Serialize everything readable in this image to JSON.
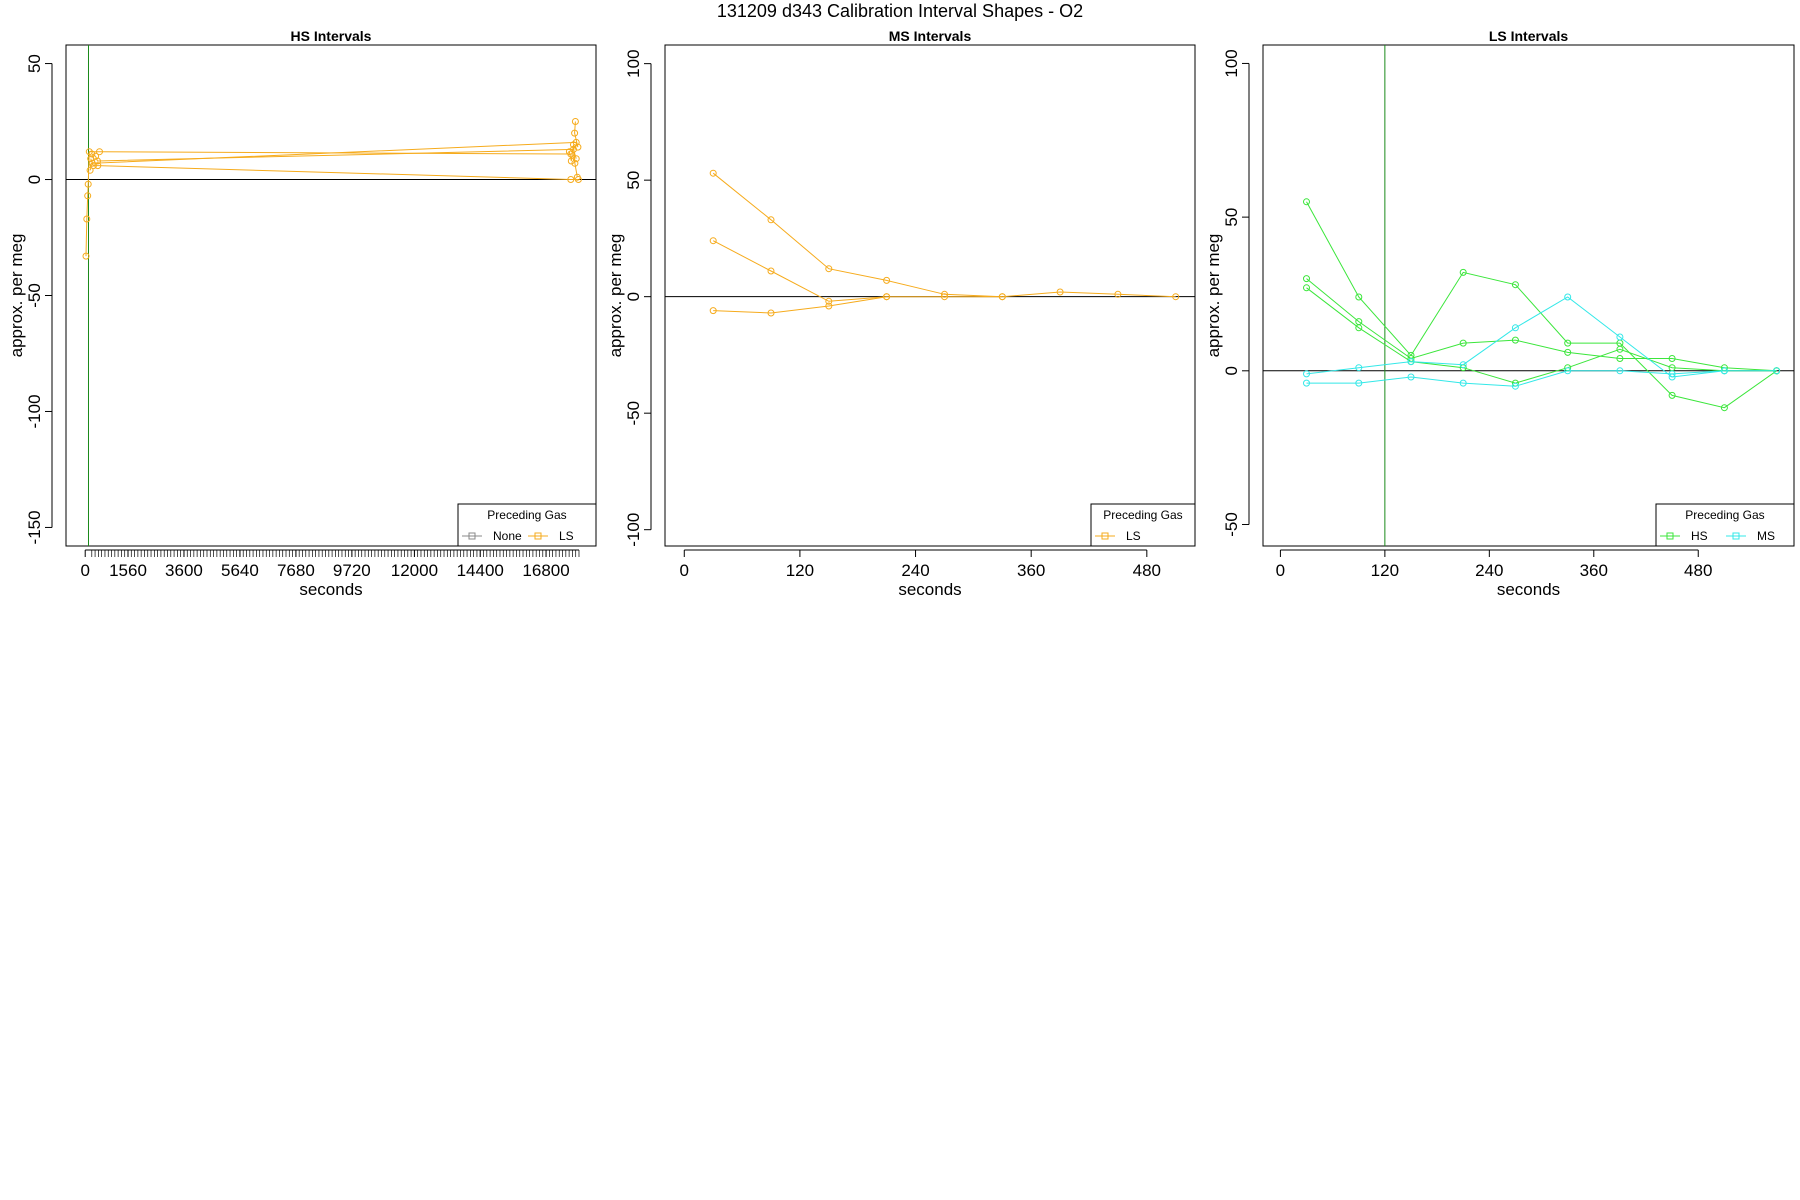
{
  "figure": {
    "title": "131209   d343   Calibration Interval Shapes - O2"
  },
  "chart_data": [
    {
      "type": "line",
      "title": "HS Intervals",
      "xlabel": "seconds",
      "ylabel": "approx. per meg",
      "xlim": [
        -700,
        18620
      ],
      "ylim": [
        -158,
        58
      ],
      "x_ticks": [
        0,
        1560,
        3600,
        5640,
        7680,
        9720,
        12000,
        14400,
        16800
      ],
      "y_ticks": [
        50,
        0,
        -50,
        -100,
        -150
      ],
      "minor_tick_spacing": 120,
      "minor_tick_range": [
        240,
        18000
      ],
      "vline": 120,
      "hline": 0,
      "legend": {
        "title": "Preceding Gas",
        "position": "bottom-right",
        "entries": [
          {
            "name": "None",
            "color": "#888888"
          },
          {
            "name": "LS",
            "color": "#f6ab1c"
          }
        ]
      },
      "series": [
        {
          "name": "LS",
          "color": "#f6ab1c",
          "points": [
            [
              30,
              -33
            ],
            [
              60,
              -17
            ],
            [
              90,
              -7
            ],
            [
              110,
              -2
            ],
            [
              150,
              12
            ],
            [
              520,
              12
            ],
            [
              17700,
              11
            ]
          ]
        },
        {
          "name": "LS",
          "color": "#f6ab1c",
          "points": [
            [
              200,
              9
            ],
            [
              300,
              6
            ],
            [
              460,
              6
            ],
            [
              17700,
              0
            ],
            [
              17980,
              0
            ]
          ]
        },
        {
          "name": "LS",
          "color": "#f6ab1c",
          "points": [
            [
              240,
              11
            ],
            [
              380,
              10
            ],
            [
              450,
              8
            ],
            [
              17800,
              13
            ],
            [
              17900,
              9
            ]
          ]
        },
        {
          "name": "LS",
          "color": "#f6ab1c",
          "points": [
            [
              180,
              4
            ],
            [
              260,
              7
            ],
            [
              17900,
              16
            ],
            [
              17960,
              14
            ],
            [
              17840,
              20
            ],
            [
              17870,
              25
            ]
          ]
        },
        {
          "name": "LS",
          "color": "#f6ab1c",
          "points": [
            [
              17650,
              12
            ],
            [
              17720,
              8
            ],
            [
              17800,
              15
            ],
            [
              17850,
              7
            ],
            [
              17940,
              1
            ]
          ]
        }
      ]
    },
    {
      "type": "line",
      "title": "MS Intervals",
      "xlabel": "seconds",
      "ylabel": "approx. per meg",
      "xlim": [
        -20,
        530
      ],
      "ylim": [
        -107,
        108
      ],
      "x_ticks": [
        0,
        120,
        240,
        360,
        480
      ],
      "y_ticks": [
        100,
        50,
        0,
        -50,
        -100
      ],
      "hline": 0,
      "legend": {
        "title": "Preceding Gas",
        "position": "bottom-right",
        "entries": [
          {
            "name": "LS",
            "color": "#f6ab1c"
          }
        ]
      },
      "series": [
        {
          "name": "LS",
          "color": "#f6ab1c",
          "points": [
            [
              30,
              53
            ],
            [
              90,
              33
            ],
            [
              150,
              12
            ],
            [
              210,
              7
            ],
            [
              270,
              1
            ],
            [
              330,
              0
            ],
            [
              390,
              2
            ],
            [
              450,
              1
            ],
            [
              510,
              0
            ]
          ]
        },
        {
          "name": "LS",
          "color": "#f6ab1c",
          "points": [
            [
              30,
              24
            ],
            [
              90,
              11
            ],
            [
              150,
              -2
            ],
            [
              210,
              0
            ],
            [
              270,
              0
            ],
            [
              330,
              0
            ]
          ]
        },
        {
          "name": "LS",
          "color": "#f6ab1c",
          "points": [
            [
              30,
              -6
            ],
            [
              90,
              -7
            ],
            [
              150,
              -4
            ],
            [
              210,
              0
            ]
          ]
        }
      ]
    },
    {
      "type": "line",
      "title": "LS Intervals",
      "xlabel": "seconds",
      "ylabel": "approx. per meg",
      "xlim": [
        -20,
        590
      ],
      "ylim": [
        -57,
        106
      ],
      "x_ticks": [
        0,
        120,
        240,
        360,
        480
      ],
      "y_ticks": [
        100,
        50,
        0,
        -50
      ],
      "vline": 120,
      "hline": 0,
      "legend": {
        "title": "Preceding Gas",
        "position": "bottom-right",
        "entries": [
          {
            "name": "HS",
            "color": "#3be63b"
          },
          {
            "name": "MS",
            "color": "#33e8e8"
          }
        ]
      },
      "series": [
        {
          "name": "HS",
          "color": "#3be63b",
          "points": [
            [
              30,
              55
            ],
            [
              90,
              24
            ],
            [
              150,
              5
            ],
            [
              210,
              32
            ],
            [
              270,
              28
            ],
            [
              330,
              9
            ],
            [
              390,
              9
            ],
            [
              450,
              -8
            ],
            [
              510,
              -12
            ],
            [
              570,
              0
            ]
          ]
        },
        {
          "name": "HS",
          "color": "#3be63b",
          "points": [
            [
              30,
              30
            ],
            [
              90,
              16
            ],
            [
              150,
              4
            ],
            [
              210,
              9
            ],
            [
              270,
              10
            ],
            [
              330,
              6
            ],
            [
              390,
              4
            ],
            [
              450,
              4
            ],
            [
              510,
              1
            ],
            [
              570,
              0
            ]
          ]
        },
        {
          "name": "HS",
          "color": "#3be63b",
          "points": [
            [
              30,
              27
            ],
            [
              90,
              14
            ],
            [
              150,
              3
            ],
            [
              210,
              1
            ],
            [
              270,
              -4
            ],
            [
              330,
              1
            ],
            [
              390,
              7
            ],
            [
              450,
              1
            ],
            [
              510,
              0
            ],
            [
              570,
              0
            ]
          ]
        },
        {
          "name": "MS",
          "color": "#33e8e8",
          "points": [
            [
              30,
              -1
            ],
            [
              90,
              1
            ],
            [
              150,
              3
            ],
            [
              210,
              2
            ],
            [
              270,
              14
            ],
            [
              330,
              24
            ],
            [
              390,
              11
            ],
            [
              450,
              -2
            ],
            [
              510,
              0
            ],
            [
              570,
              0
            ]
          ]
        },
        {
          "name": "MS",
          "color": "#33e8e8",
          "points": [
            [
              30,
              -4
            ],
            [
              90,
              -4
            ],
            [
              150,
              -2
            ],
            [
              210,
              -4
            ],
            [
              270,
              -5
            ],
            [
              330,
              0
            ],
            [
              390,
              0
            ],
            [
              450,
              -1
            ],
            [
              510,
              0
            ]
          ]
        }
      ]
    }
  ]
}
